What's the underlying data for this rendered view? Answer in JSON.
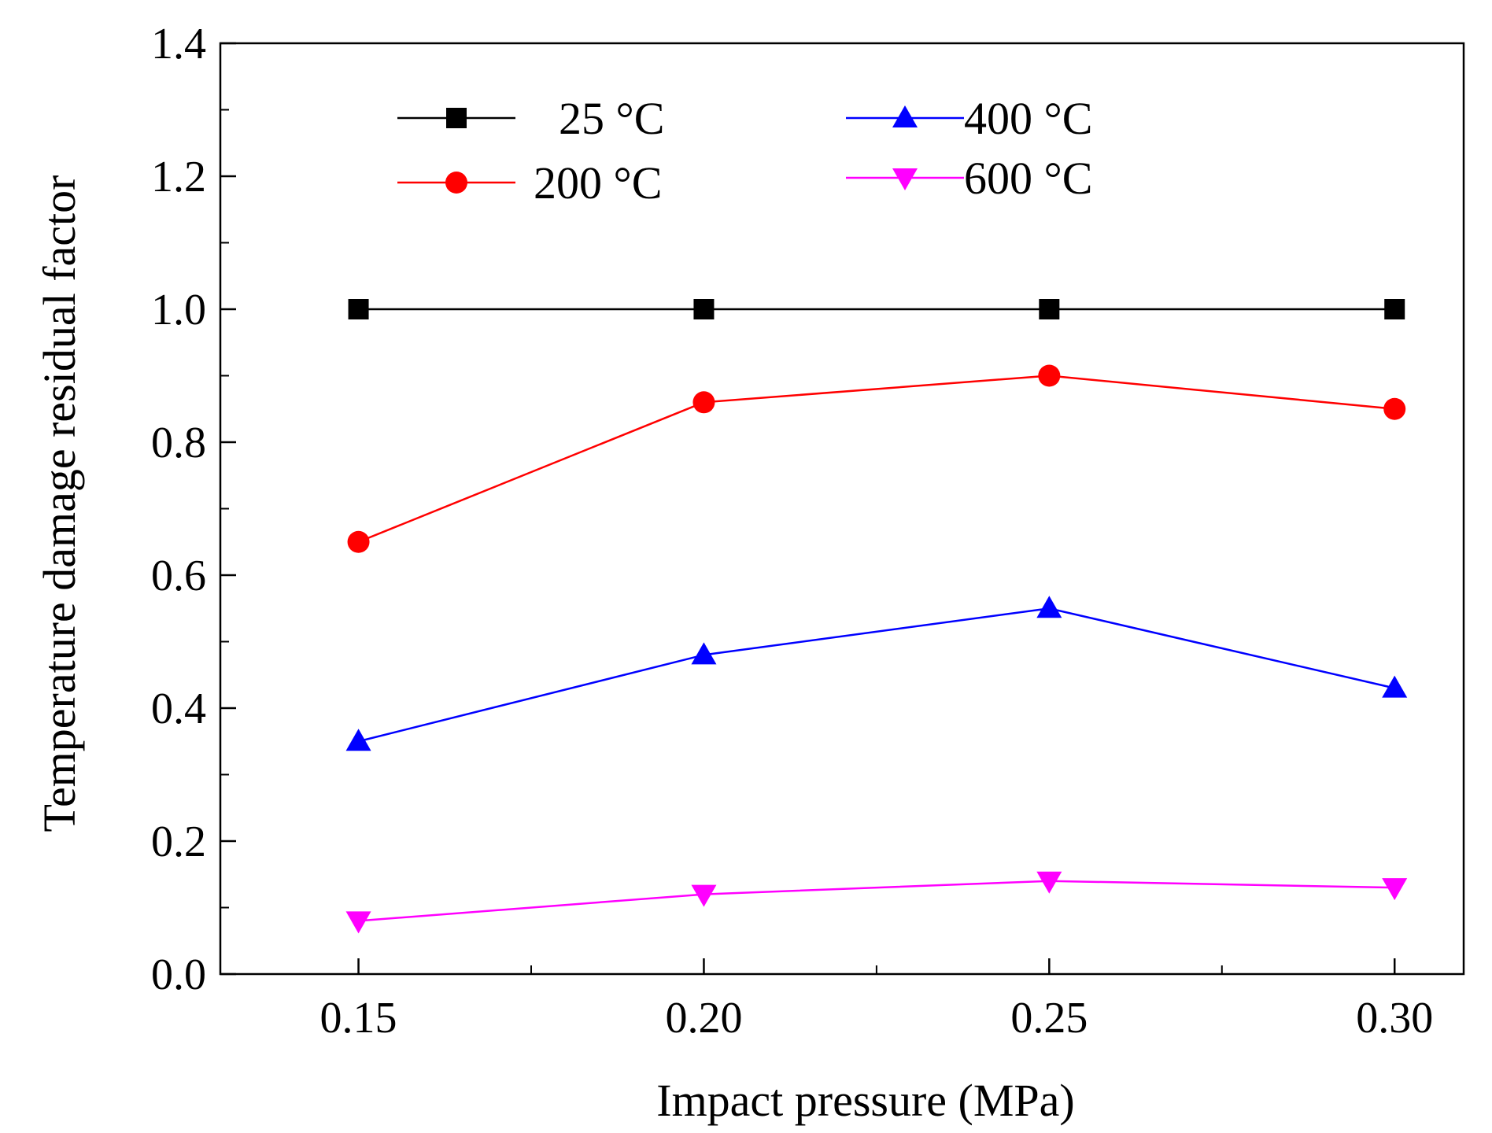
{
  "chart_data": {
    "type": "line",
    "title": "",
    "xlabel": "Impact pressure (MPa)",
    "ylabel": "Temperature damage residual factor",
    "x": [
      0.15,
      0.2,
      0.25,
      0.3
    ],
    "x_tick_labels": [
      "0.15",
      "0.20",
      "0.25",
      "0.30"
    ],
    "xlim": [
      0.13,
      0.31
    ],
    "ylim": [
      0.0,
      1.4
    ],
    "y_tick_labels": [
      "0.0",
      "0.2",
      "0.4",
      "0.6",
      "0.8",
      "1.0",
      "1.2",
      "1.4"
    ],
    "grid": false,
    "legend_position": "top-left",
    "series": [
      {
        "name": "25 °C",
        "label": "25 °C",
        "color": "#000000",
        "marker": "square",
        "values": [
          1.0,
          1.0,
          1.0,
          1.0
        ]
      },
      {
        "name": "200 °C",
        "label": "200 °C",
        "color": "#ff0000",
        "marker": "circle",
        "values": [
          0.65,
          0.86,
          0.9,
          0.85
        ]
      },
      {
        "name": "400 °C",
        "label": "400 °C",
        "color": "#0000ff",
        "marker": "triangle-up",
        "values": [
          0.35,
          0.48,
          0.55,
          0.43
        ]
      },
      {
        "name": "600 °C",
        "label": "600 °C",
        "color": "#ff00ff",
        "marker": "triangle-down",
        "values": [
          0.08,
          0.12,
          0.14,
          0.13
        ]
      }
    ]
  }
}
